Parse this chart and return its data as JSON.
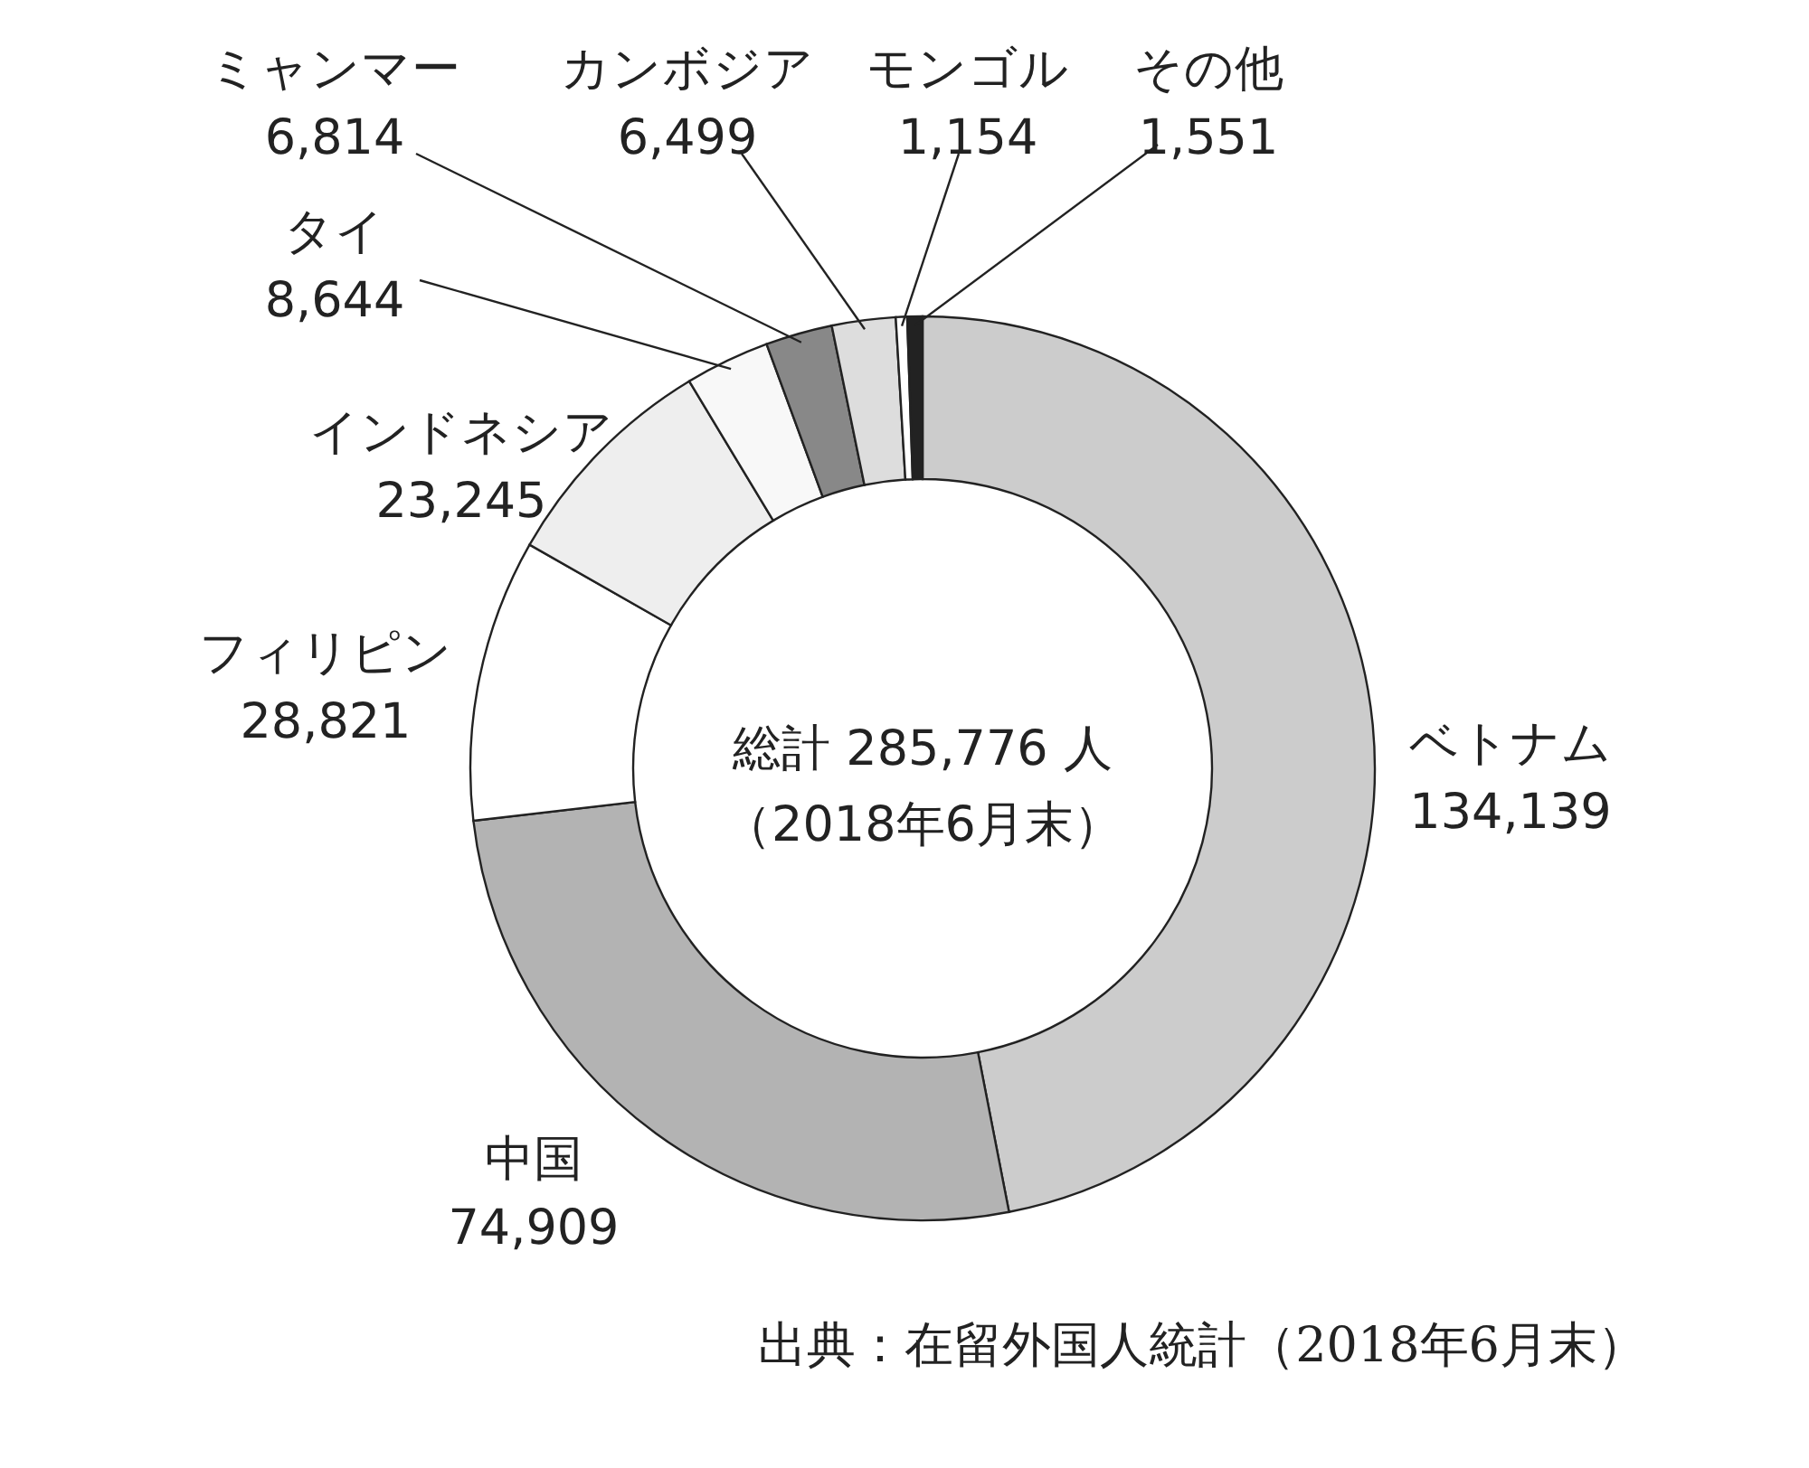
{
  "chart_data": {
    "type": "donut",
    "categories": [
      "ベトナム",
      "中国",
      "フィリピン",
      "インドネシア",
      "タイ",
      "ミャンマー",
      "カンボジア",
      "モンゴル",
      "その他"
    ],
    "values": [
      134139,
      74909,
      28821,
      23245,
      8644,
      6814,
      6499,
      1154,
      1551
    ],
    "value_labels": [
      "134,139",
      "74,909",
      "28,821",
      "23,245",
      "8,644",
      "6,814",
      "6,499",
      "1,154",
      "1,551"
    ],
    "colors": [
      "#cccccc",
      "#b3b3b3",
      "#ffffff",
      "#eeeeee",
      "#f8f8f8",
      "#888888",
      "#dddddd",
      "#ffffff",
      "#222222"
    ],
    "annotations": [
      "総計 285,776 人",
      "（2018年6月末）",
      "出典：在留外国人統計（2018年6月末）"
    ]
  }
}
